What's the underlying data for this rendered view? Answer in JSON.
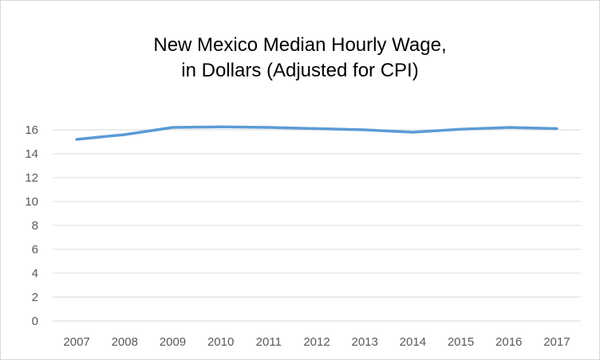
{
  "chart_data": {
    "type": "line",
    "title": [
      "New Mexico Median Hourly Wage,",
      "in Dollars (Adjusted for CPI)"
    ],
    "xlabel": "",
    "ylabel": "",
    "categories": [
      "2007",
      "2008",
      "2009",
      "2010",
      "2011",
      "2012",
      "2013",
      "2014",
      "2015",
      "2016",
      "2017"
    ],
    "series": [
      {
        "values": [
          15.2,
          15.6,
          16.2,
          16.25,
          16.2,
          16.1,
          16.0,
          15.8,
          16.05,
          16.2,
          16.1
        ],
        "color": "#5b9bd5"
      }
    ],
    "ylim": [
      0,
      16
    ],
    "yticks": [
      0,
      2,
      4,
      6,
      8,
      10,
      12,
      14,
      16
    ],
    "grid": true,
    "legend": "none"
  }
}
